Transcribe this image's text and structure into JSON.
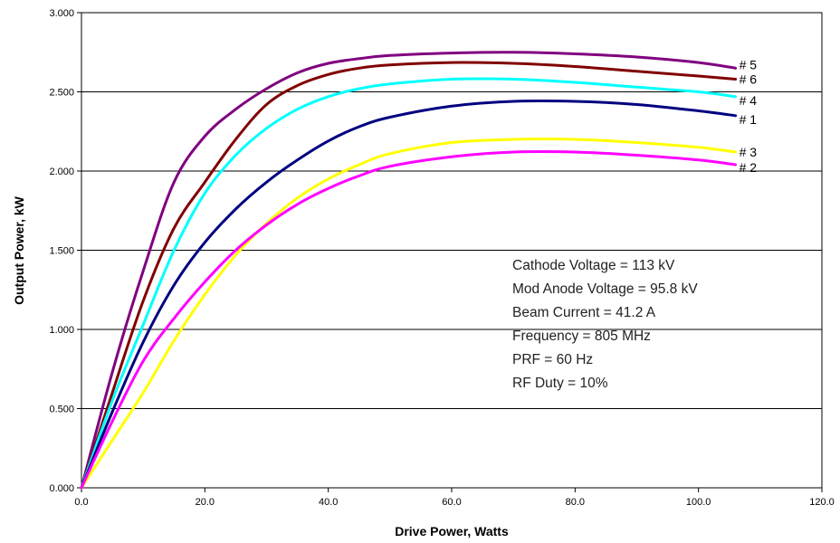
{
  "chart_data": {
    "type": "line",
    "title": "",
    "xlabel": "Drive Power, Watts",
    "ylabel": "Output Power, kW",
    "xlim": [
      0,
      120
    ],
    "ylim": [
      0,
      3
    ],
    "x_ticks": [
      0,
      20,
      40,
      60,
      80,
      100,
      120
    ],
    "x_tick_labels": [
      "0.0",
      "20.0",
      "40.0",
      "60.0",
      "80.0",
      "100.0",
      "120.0"
    ],
    "y_ticks": [
      0,
      0.5,
      1,
      1.5,
      2,
      2.5,
      3
    ],
    "y_tick_labels": [
      "0.000",
      "0.500",
      "1.000",
      "1.500",
      "2.000",
      "2.500",
      "3.000"
    ],
    "grid": "horizontal",
    "legend": "labels at line ends",
    "series": [
      {
        "name": "# 5",
        "color": "#800080",
        "points": [
          [
            0,
            0
          ],
          [
            5,
            0.73
          ],
          [
            10,
            1.37
          ],
          [
            15,
            1.93
          ],
          [
            20,
            2.22
          ],
          [
            25,
            2.39
          ],
          [
            30,
            2.52
          ],
          [
            35,
            2.62
          ],
          [
            40,
            2.68
          ],
          [
            45,
            2.71
          ],
          [
            50,
            2.73
          ],
          [
            60,
            2.745
          ],
          [
            70,
            2.75
          ],
          [
            80,
            2.74
          ],
          [
            90,
            2.72
          ],
          [
            100,
            2.685
          ],
          [
            106,
            2.65
          ]
        ]
      },
      {
        "name": "# 6",
        "color": "#800000",
        "points": [
          [
            0,
            0
          ],
          [
            5,
            0.6
          ],
          [
            10,
            1.18
          ],
          [
            15,
            1.64
          ],
          [
            20,
            1.93
          ],
          [
            25,
            2.2
          ],
          [
            30,
            2.42
          ],
          [
            35,
            2.54
          ],
          [
            40,
            2.61
          ],
          [
            45,
            2.65
          ],
          [
            50,
            2.67
          ],
          [
            60,
            2.685
          ],
          [
            70,
            2.68
          ],
          [
            80,
            2.66
          ],
          [
            90,
            2.63
          ],
          [
            100,
            2.6
          ],
          [
            106,
            2.58
          ]
        ]
      },
      {
        "name": "# 4",
        "color": "#00FFFF",
        "points": [
          [
            0,
            0
          ],
          [
            5,
            0.55
          ],
          [
            10,
            1.03
          ],
          [
            15,
            1.5
          ],
          [
            20,
            1.86
          ],
          [
            25,
            2.1
          ],
          [
            30,
            2.27
          ],
          [
            35,
            2.39
          ],
          [
            40,
            2.47
          ],
          [
            45,
            2.52
          ],
          [
            50,
            2.55
          ],
          [
            60,
            2.58
          ],
          [
            70,
            2.58
          ],
          [
            80,
            2.56
          ],
          [
            90,
            2.53
          ],
          [
            100,
            2.5
          ],
          [
            106,
            2.47
          ]
        ]
      },
      {
        "name": "# 1",
        "color": "#000080",
        "points": [
          [
            0,
            0
          ],
          [
            5,
            0.48
          ],
          [
            10,
            0.92
          ],
          [
            15,
            1.28
          ],
          [
            20,
            1.55
          ],
          [
            25,
            1.76
          ],
          [
            30,
            1.93
          ],
          [
            35,
            2.07
          ],
          [
            40,
            2.19
          ],
          [
            45,
            2.28
          ],
          [
            50,
            2.34
          ],
          [
            60,
            2.41
          ],
          [
            70,
            2.44
          ],
          [
            80,
            2.44
          ],
          [
            90,
            2.42
          ],
          [
            100,
            2.38
          ],
          [
            106,
            2.35
          ]
        ]
      },
      {
        "name": "# 3",
        "color": "#FFFF00",
        "points": [
          [
            0,
            0
          ],
          [
            5,
            0.3
          ],
          [
            10,
            0.6
          ],
          [
            15,
            0.93
          ],
          [
            20,
            1.22
          ],
          [
            25,
            1.47
          ],
          [
            30,
            1.67
          ],
          [
            35,
            1.83
          ],
          [
            40,
            1.95
          ],
          [
            45,
            2.04
          ],
          [
            50,
            2.11
          ],
          [
            60,
            2.18
          ],
          [
            70,
            2.2
          ],
          [
            80,
            2.2
          ],
          [
            90,
            2.18
          ],
          [
            100,
            2.15
          ],
          [
            106,
            2.12
          ]
        ]
      },
      {
        "name": "# 2",
        "color": "#FF00FF",
        "points": [
          [
            0,
            0
          ],
          [
            5,
            0.42
          ],
          [
            10,
            0.8
          ],
          [
            15,
            1.07
          ],
          [
            20,
            1.3
          ],
          [
            25,
            1.5
          ],
          [
            30,
            1.66
          ],
          [
            35,
            1.79
          ],
          [
            40,
            1.89
          ],
          [
            45,
            1.97
          ],
          [
            50,
            2.03
          ],
          [
            60,
            2.09
          ],
          [
            70,
            2.12
          ],
          [
            80,
            2.12
          ],
          [
            90,
            2.1
          ],
          [
            100,
            2.07
          ],
          [
            106,
            2.04
          ]
        ]
      }
    ],
    "annotations": [
      "Cathode Voltage = 113 kV",
      "Mod Anode Voltage = 95.8 kV",
      "Beam Current = 41.2 A",
      "Frequency = 805 MHz",
      "PRF = 60 Hz",
      "RF Duty = 10%"
    ]
  }
}
